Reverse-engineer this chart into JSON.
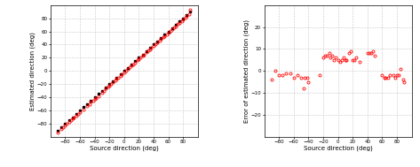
{
  "left_xlabel": "Source direction (deg)",
  "left_ylabel": "Estimated direction (deg)",
  "left_xlim": [
    -100,
    100
  ],
  "left_ylim": [
    -100,
    100
  ],
  "left_xticks": [
    -80,
    -60,
    -40,
    -20,
    0,
    20,
    40,
    60,
    80
  ],
  "left_yticks": [
    -80,
    -60,
    -40,
    -20,
    0,
    20,
    40,
    60,
    80
  ],
  "right_xlabel": "Source direction (deg)",
  "right_ylabel": "Error of estimated direction (deg)",
  "right_xlim": [
    -100,
    100
  ],
  "right_ylim": [
    -30,
    30
  ],
  "right_xticks": [
    -80,
    -60,
    -40,
    -20,
    0,
    20,
    40,
    60,
    80
  ],
  "right_yticks": [
    -20,
    -10,
    0,
    10,
    20
  ],
  "black_x": [
    -90,
    -85,
    -80,
    -75,
    -70,
    -65,
    -60,
    -55,
    -50,
    -45,
    -40,
    -35,
    -30,
    -25,
    -20,
    -15,
    -10,
    -5,
    0,
    5,
    10,
    15,
    20,
    25,
    30,
    35,
    40,
    45,
    50,
    55,
    60,
    65,
    70,
    75,
    80,
    85,
    90
  ],
  "black_y": [
    -90,
    -85,
    -80,
    -75,
    -70,
    -65,
    -60,
    -55,
    -50,
    -45,
    -40,
    -35,
    -30,
    -25,
    -20,
    -15,
    -10,
    -5,
    0,
    5,
    10,
    15,
    20,
    25,
    30,
    35,
    40,
    45,
    50,
    55,
    60,
    65,
    70,
    75,
    80,
    85,
    90
  ],
  "red_left_x": [
    -90,
    -85,
    -83,
    -80,
    -78,
    -75,
    -72,
    -70,
    -68,
    -65,
    -62,
    -60,
    -55,
    -50,
    -47,
    -45,
    -42,
    -40,
    -38,
    -35,
    -30,
    -27,
    -25,
    -22,
    -20,
    -18,
    -15,
    -12,
    -10,
    -8,
    -5,
    -3,
    0,
    3,
    5,
    8,
    10,
    12,
    15,
    18,
    20,
    22,
    25,
    27,
    30,
    33,
    35,
    37,
    40,
    43,
    45,
    48,
    50,
    53,
    55,
    58,
    60,
    63,
    65,
    68,
    70,
    73,
    75,
    78,
    80,
    83,
    85,
    88,
    90
  ],
  "red_left_y": [
    -93,
    -88,
    -85,
    -82,
    -80,
    -77,
    -75,
    -72,
    -70,
    -68,
    -65,
    -62,
    -58,
    -53,
    -50,
    -47,
    -45,
    -43,
    -41,
    -38,
    -33,
    -30,
    -27,
    -24,
    -22,
    -20,
    -17,
    -14,
    -12,
    -10,
    -7,
    -5,
    -2,
    1,
    3,
    6,
    8,
    10,
    13,
    16,
    18,
    20,
    23,
    25,
    28,
    31,
    33,
    35,
    38,
    41,
    43,
    46,
    48,
    51,
    53,
    56,
    58,
    61,
    63,
    66,
    68,
    71,
    73,
    76,
    78,
    81,
    83,
    86,
    93
  ],
  "red_right_x": [
    -90,
    -85,
    -80,
    -75,
    -70,
    -65,
    -60,
    -55,
    -50,
    -47,
    -45,
    -42,
    -40,
    -25,
    -20,
    -18,
    -15,
    -12,
    -10,
    -8,
    -5,
    -3,
    0,
    3,
    5,
    8,
    10,
    12,
    15,
    18,
    20,
    22,
    25,
    30,
    40,
    43,
    45,
    48,
    50,
    60,
    63,
    65,
    68,
    70,
    75,
    78,
    80,
    83,
    85,
    88,
    90
  ],
  "red_right_y": [
    -4,
    0,
    -2,
    -2,
    -1,
    -1,
    -3,
    -2,
    -3,
    -8,
    -3,
    -3,
    -5,
    -2,
    6,
    7,
    7,
    8,
    6,
    7,
    5,
    6,
    5,
    4,
    5,
    6,
    5,
    5,
    8,
    9,
    5,
    5,
    6,
    4,
    8,
    8,
    8,
    9,
    7,
    -2,
    -3,
    -3,
    -3,
    -2,
    -2,
    -3,
    -2,
    -2,
    1,
    -4,
    -5
  ],
  "grid_color": "#c8c8c8",
  "red_color": "#ff0000",
  "black_color": "#000000",
  "fig_facecolor": "#ffffff"
}
